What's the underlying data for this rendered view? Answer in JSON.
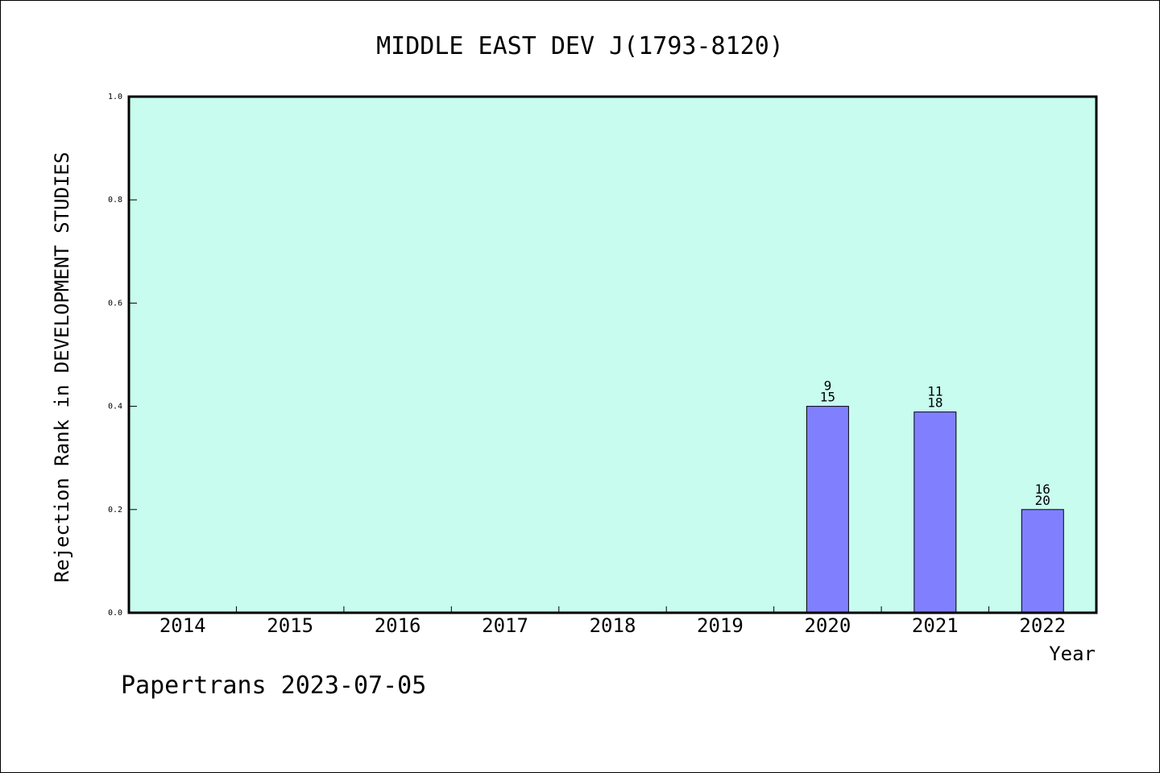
{
  "footer": "Papertrans 2023-07-05",
  "colors": {
    "plot_background": "#c8fcee",
    "bar_fill": "#8080ff",
    "axis": "#000000"
  },
  "chart_data": {
    "type": "bar",
    "title": "MIDDLE EAST DEV J(1793-8120)",
    "xlabel": "Year",
    "ylabel": "Rejection Rank in DEVELOPMENT STUDIES",
    "ylim": [
      0,
      1.0
    ],
    "yticks": [
      "0.0",
      "0.2",
      "0.4",
      "0.6",
      "0.8",
      "1.0"
    ],
    "categories": [
      "2014",
      "2015",
      "2016",
      "2017",
      "2018",
      "2019",
      "2020",
      "2021",
      "2022"
    ],
    "values": [
      null,
      null,
      null,
      null,
      null,
      null,
      0.4,
      0.389,
      0.2
    ],
    "annotations": [
      null,
      null,
      null,
      null,
      null,
      null,
      {
        "top": "9",
        "bottom": "15"
      },
      {
        "top": "11",
        "bottom": "18"
      },
      {
        "top": "16",
        "bottom": "20"
      }
    ],
    "grid": false,
    "legend": "none"
  }
}
